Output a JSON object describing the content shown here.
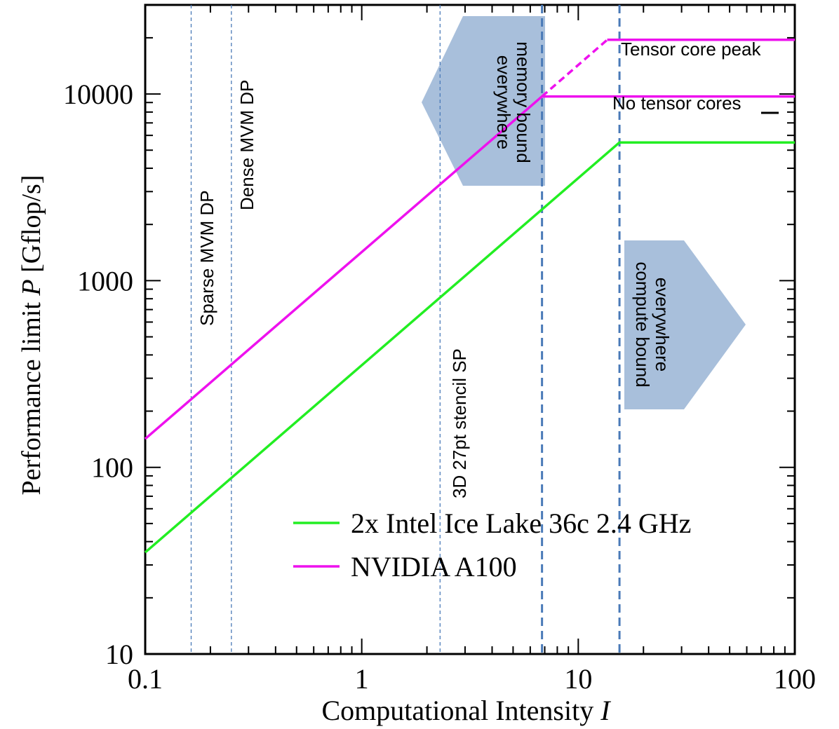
{
  "chart_data": {
    "type": "line",
    "title": "",
    "xlabel_text": "Computational Intensity ",
    "xlabel_var": "I",
    "ylabel_text": "Performance limit ",
    "ylabel_var": "P",
    "ylabel_unit": " [Gflop/s]",
    "xscale": "log",
    "yscale": "log",
    "xlim": [
      0.1,
      100
    ],
    "ylim": [
      10,
      30000
    ],
    "xticks": [
      {
        "value": 0.1,
        "label": "0.1"
      },
      {
        "value": 1,
        "label": "1"
      },
      {
        "value": 10,
        "label": "10"
      },
      {
        "value": 100,
        "label": "100"
      }
    ],
    "yticks": [
      {
        "value": 10,
        "label": "10"
      },
      {
        "value": 100,
        "label": "100"
      },
      {
        "value": 1000,
        "label": "1000"
      },
      {
        "value": 10000,
        "label": "10000"
      }
    ],
    "legend_position": "lower-right",
    "series": [
      {
        "name": "2x Intel Ice Lake 36c 2.4 GHz",
        "color": "#22ee22",
        "style": "solid",
        "x": [
          0.1,
          15.5,
          100
        ],
        "y": [
          35,
          5500,
          5500
        ]
      },
      {
        "name": "NVIDIA A100",
        "color": "#ee11ee",
        "style": "solid",
        "x": [
          0.1,
          6.8,
          100
        ],
        "y": [
          142,
          9700,
          9700
        ]
      },
      {
        "name": "",
        "color": "#ee11ee",
        "style": "dashed",
        "x": [
          6.8,
          13.6
        ],
        "y": [
          9700,
          19500
        ]
      },
      {
        "name": "",
        "color": "#ee11ee",
        "style": "solid",
        "x": [
          13.6,
          100
        ],
        "y": [
          19500,
          19500
        ]
      }
    ],
    "vlines": [
      {
        "x": 0.163,
        "label": "Sparse MVM DP",
        "style": "thin"
      },
      {
        "x": 0.25,
        "label": "Dense MVM DP",
        "style": "thin"
      },
      {
        "x": 2.3,
        "label": "3D 27pt stencil SP",
        "style": "thin"
      },
      {
        "x": 6.8,
        "label": "",
        "style": "thick"
      },
      {
        "x": 15.5,
        "label": "",
        "style": "thick"
      }
    ],
    "annotations": [
      {
        "text": "Tensor core peak"
      },
      {
        "text": "No tensor cores"
      }
    ],
    "arrows": [
      {
        "line1": "memory bound",
        "line2": "everywhere",
        "direction": "left"
      },
      {
        "line1": "compute bound",
        "line2": "everywhere",
        "direction": "right"
      }
    ],
    "colors": {
      "arrow_fill": "#a8bfdb",
      "vline": "#4a7ab8"
    }
  }
}
